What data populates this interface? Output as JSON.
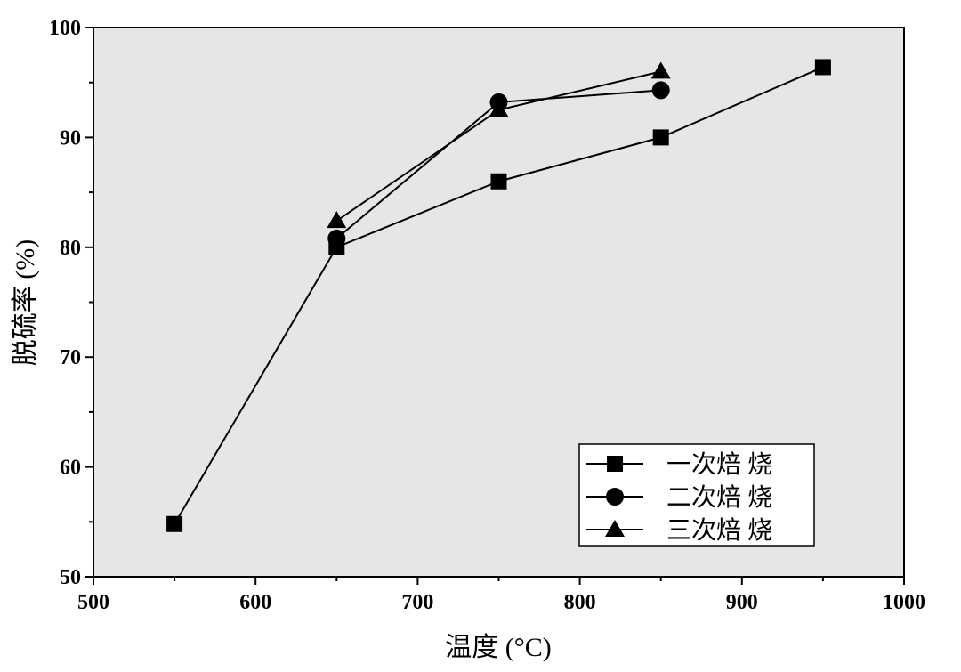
{
  "chart_data": {
    "type": "line",
    "title": "",
    "xlabel": "温度 (°C)",
    "ylabel": "脱硫率 (%)",
    "xlim": [
      500,
      1000
    ],
    "ylim": [
      50,
      100
    ],
    "xticks": [
      "500",
      "600",
      "700",
      "800",
      "900",
      "1000"
    ],
    "yticks": [
      "50",
      "60",
      "70",
      "80",
      "90",
      "100"
    ],
    "background_color": "#e6e6e6",
    "line_color": "#000000",
    "legend_position": "bottom-right",
    "grid": false,
    "series": [
      {
        "name": "一次焙 烧",
        "marker": "square",
        "x": [
          550,
          650,
          750,
          850,
          950
        ],
        "y": [
          54.8,
          80.0,
          86.0,
          90.0,
          96.4
        ]
      },
      {
        "name": "二次焙 烧",
        "marker": "circle",
        "x": [
          650,
          750,
          850
        ],
        "y": [
          80.8,
          93.2,
          94.3
        ]
      },
      {
        "name": "三次焙 烧",
        "marker": "triangle",
        "x": [
          650,
          750,
          850
        ],
        "y": [
          82.4,
          92.5,
          96.0
        ]
      }
    ]
  }
}
